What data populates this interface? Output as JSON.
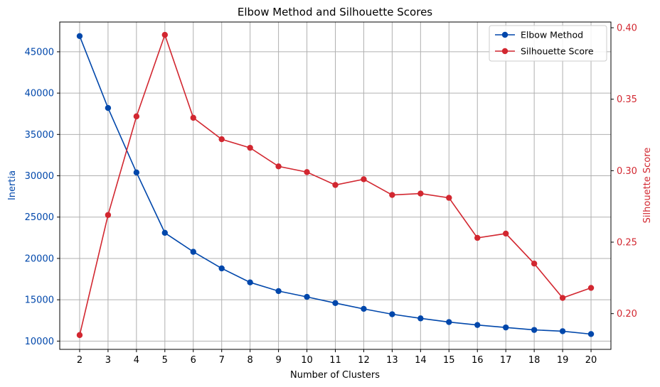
{
  "chart_data": {
    "type": "line",
    "title": "Elbow Method and Silhouette Scores",
    "xlabel": "Number of Clusters",
    "ylabel_left": "Inertia",
    "ylabel_right": "Silhouette Score",
    "x": [
      2,
      3,
      4,
      5,
      6,
      7,
      8,
      9,
      10,
      11,
      12,
      13,
      14,
      15,
      16,
      17,
      18,
      19,
      20
    ],
    "xlim": [
      1.3,
      20.7
    ],
    "ylim_left": [
      9000,
      48600
    ],
    "ylim_right": [
      0.175,
      0.404
    ],
    "yticks_left": [
      10000,
      15000,
      20000,
      25000,
      30000,
      35000,
      40000,
      45000
    ],
    "yticks_right": [
      0.2,
      0.25,
      0.3,
      0.35,
      0.4
    ],
    "grid": true,
    "legend_position": "top-right",
    "colors": {
      "left_axis": "#0047AB",
      "right_axis": "#D22730",
      "grid": "#b0b0b0"
    },
    "series": [
      {
        "name": "Elbow Method",
        "axis": "left",
        "color": "#0047AB",
        "values": [
          46900,
          38200,
          30400,
          23100,
          20800,
          18800,
          17100,
          16050,
          15350,
          14600,
          13900,
          13250,
          12750,
          12300,
          11950,
          11650,
          11350,
          11200,
          10850
        ]
      },
      {
        "name": "Silhouette Score",
        "axis": "right",
        "color": "#D22730",
        "values": [
          0.185,
          0.269,
          0.338,
          0.395,
          0.337,
          0.322,
          0.316,
          0.303,
          0.299,
          0.29,
          0.294,
          0.283,
          0.284,
          0.281,
          0.253,
          0.256,
          0.235,
          0.211,
          0.218
        ]
      }
    ]
  }
}
